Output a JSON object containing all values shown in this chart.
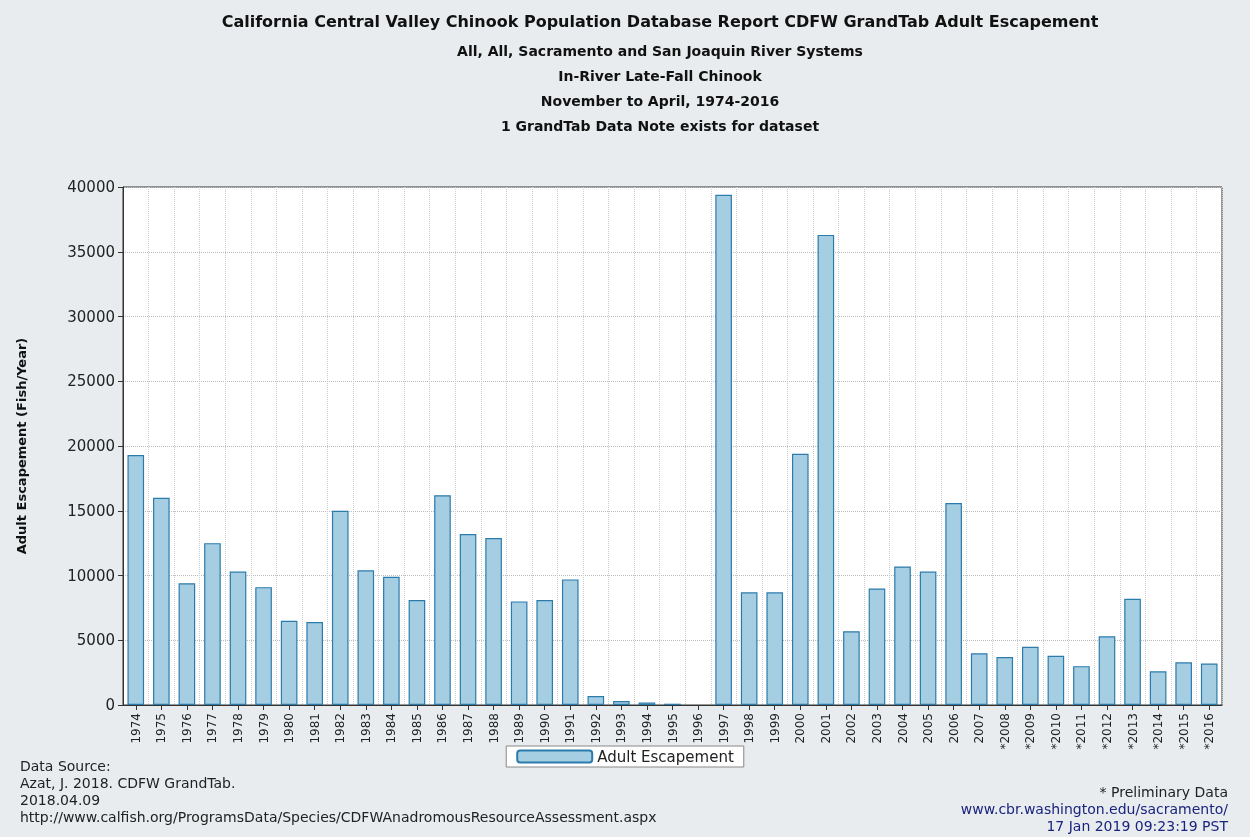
{
  "chart_data": {
    "type": "bar",
    "title": "California Central Valley Chinook Population Database Report CDFW GrandTab Adult Escapement",
    "subtitle": "All, All, Sacramento and San Joaquin River Systems\nIn-River Late-Fall Chinook\nNovember to April, 1974-2016\n1 GrandTab Data Note exists for dataset",
    "ylabel": "Adult Escapement (Fish/Year)",
    "categories": [
      "1974",
      "1975",
      "1976",
      "1977",
      "1978",
      "1979",
      "1980",
      "1981",
      "1982",
      "1983",
      "1984",
      "1985",
      "1986",
      "1987",
      "1988",
      "1989",
      "1990",
      "1991",
      "1992",
      "1993",
      "1994",
      "1995",
      "1996",
      "1997",
      "1998",
      "1999",
      "2000",
      "2001",
      "2002",
      "2003",
      "2004",
      "2005",
      "2006",
      "2007",
      "*2008",
      "*2009",
      "*2010",
      "*2011",
      "*2012",
      "*2013",
      "*2014",
      "*2015",
      "*2016"
    ],
    "series": [
      {
        "name": "Adult Escapement",
        "color": "#a6cee3",
        "values": [
          19300,
          16000,
          9400,
          12500,
          10300,
          9100,
          6500,
          6400,
          15000,
          10400,
          9900,
          8100,
          16200,
          13200,
          12900,
          8000,
          8100,
          9700,
          700,
          300,
          200,
          100,
          null,
          39400,
          8700,
          8700,
          19400,
          36300,
          5700,
          9000,
          10700,
          10300,
          15600,
          4000,
          3700,
          4500,
          3800,
          3000,
          5300,
          8200,
          2600,
          3300,
          3200
        ]
      }
    ],
    "ylim": [
      0,
      40000
    ],
    "yticks": [
      0,
      5000,
      10000,
      15000,
      20000,
      25000,
      30000,
      35000,
      40000
    ],
    "grid": true,
    "legend": "bottom",
    "annotations": [
      "Data Source:\nAzat, J. 2018. CDFW GrandTab.\n2018.04.09\nhttp://www.calfish.org/ProgramsData/Species/CDFWAnadromousResourceAssessment.aspx",
      "* Preliminary Data",
      "www.cbr.washington.edu/sacramento/\n17 Jan 2019 09:23:19 PST"
    ]
  }
}
